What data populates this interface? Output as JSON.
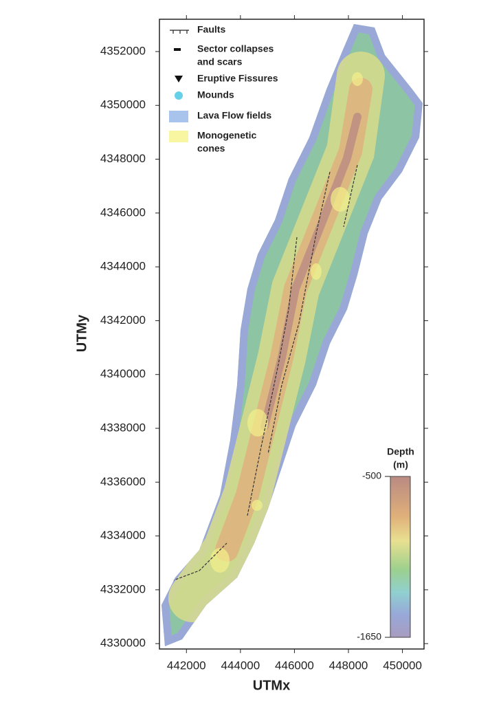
{
  "map": {
    "x_axis": {
      "label": "UTMx",
      "lim": [
        441000,
        450800
      ],
      "ticks": [
        442000,
        444000,
        446000,
        448000,
        450000
      ]
    },
    "y_axis": {
      "label": "UTMy",
      "lim": [
        4329800,
        4353200
      ],
      "ticks": [
        4330000,
        4332000,
        4334000,
        4336000,
        4338000,
        4340000,
        4342000,
        4344000,
        4346000,
        4348000,
        4350000,
        4352000
      ]
    },
    "legend": [
      {
        "lines": [
          "Faults"
        ]
      },
      {
        "lines": [
          "Sector collapses",
          "and scars"
        ]
      },
      {
        "lines": [
          "Eruptive Fissures"
        ]
      },
      {
        "lines": [
          "Mounds"
        ]
      },
      {
        "lines": [
          "Lava Flow fields"
        ]
      },
      {
        "lines": [
          "Monogenetic",
          "cones"
        ]
      }
    ],
    "colorbar": {
      "title_lines": [
        "Depth",
        "(m)"
      ],
      "lim": [
        -1650,
        -500
      ],
      "ticks": [
        -500,
        -1650
      ]
    }
  }
}
